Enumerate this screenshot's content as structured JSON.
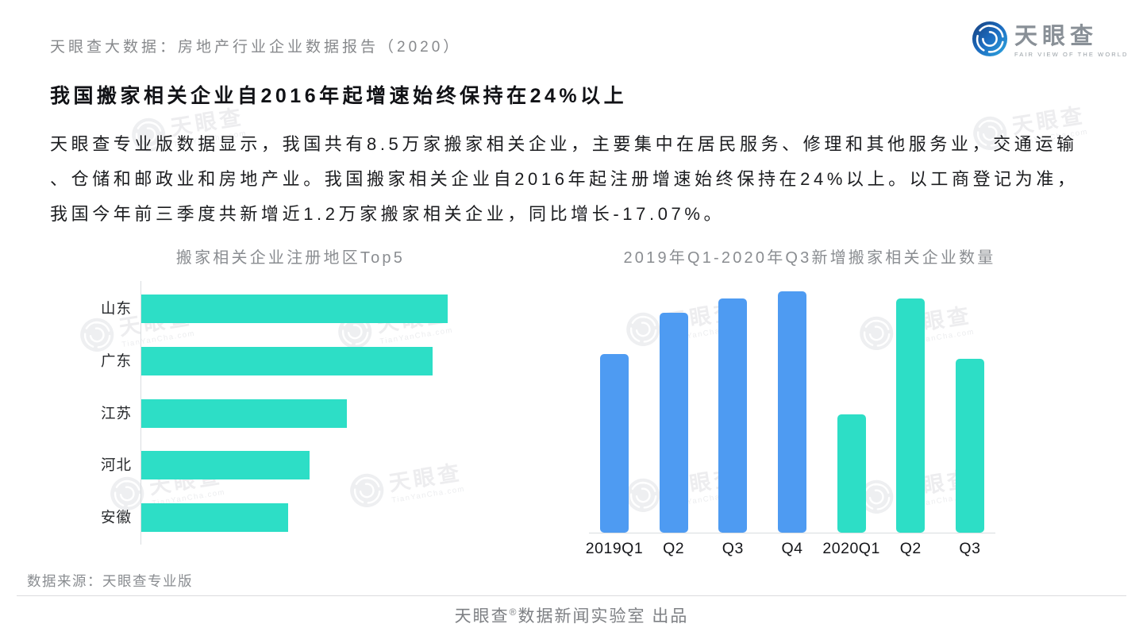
{
  "page": {
    "header": {
      "kicker": "天眼查大数据：房地产行业企业数据报告（2020）",
      "logo": {
        "wordmark": "天眼查",
        "tagline": "FAIR VIEW OF THE WORLD"
      }
    },
    "headline": "我国搬家相关企业自2016年起增速始终保持在24%以上",
    "paragraph_lines": [
      "天眼查专业版数据显示，我国共有8.5万家搬家相关企业，主要集中在居民服务、修理和其他服务业，交通运输",
      "、仓储和邮政业和房地产业。我国搬家相关企业自2016年起注册增速始终保持在24%以上。以工商登记为准，",
      "我国今年前三季度共新增近1.2万家搬家相关企业，同比增长-17.07%。"
    ],
    "source_note": "数据来源：天眼查专业版",
    "footer_credit": {
      "brand": "天眼查",
      "reg_mark": "®",
      "suffix": "数据新闻实验室 出品"
    },
    "watermark": {
      "brand": "天眼查",
      "site": "TianYanCha.com"
    }
  },
  "colors": {
    "teal": "#2DDEC6",
    "blue": "#4E9BF2",
    "text_dark": "#1b1c1f",
    "muted_gray": "#8a8d91",
    "axis_line": "#d9dde0"
  },
  "chart_data": [
    {
      "type": "bar",
      "orientation": "horizontal",
      "title": "搬家相关企业注册地区Top5",
      "categories": [
        "山东",
        "广东",
        "江苏",
        "河北",
        "安徽"
      ],
      "values": [
        100,
        95,
        67,
        55,
        48
      ],
      "xlim": [
        0,
        100
      ],
      "unit": "relative-index (no numeric axis labels shown in chart)",
      "bar_color": "#2DDEC6",
      "grid": false,
      "value_labels": false
    },
    {
      "type": "bar",
      "orientation": "vertical",
      "title": "2019年Q1-2020年Q3新增搬家相关企业数量",
      "categories": [
        "2019Q1",
        "Q2",
        "Q3",
        "Q4",
        "2020Q1",
        "Q2",
        "Q3"
      ],
      "values": [
        74,
        91,
        97,
        100,
        49,
        97,
        72
      ],
      "ylim": [
        0,
        100
      ],
      "unit": "relative-index (no numeric axis labels shown in chart)",
      "bar_colors": [
        "#4E9BF2",
        "#4E9BF2",
        "#4E9BF2",
        "#4E9BF2",
        "#2DDEC6",
        "#2DDEC6",
        "#2DDEC6"
      ],
      "grid": false,
      "value_labels": false
    }
  ]
}
